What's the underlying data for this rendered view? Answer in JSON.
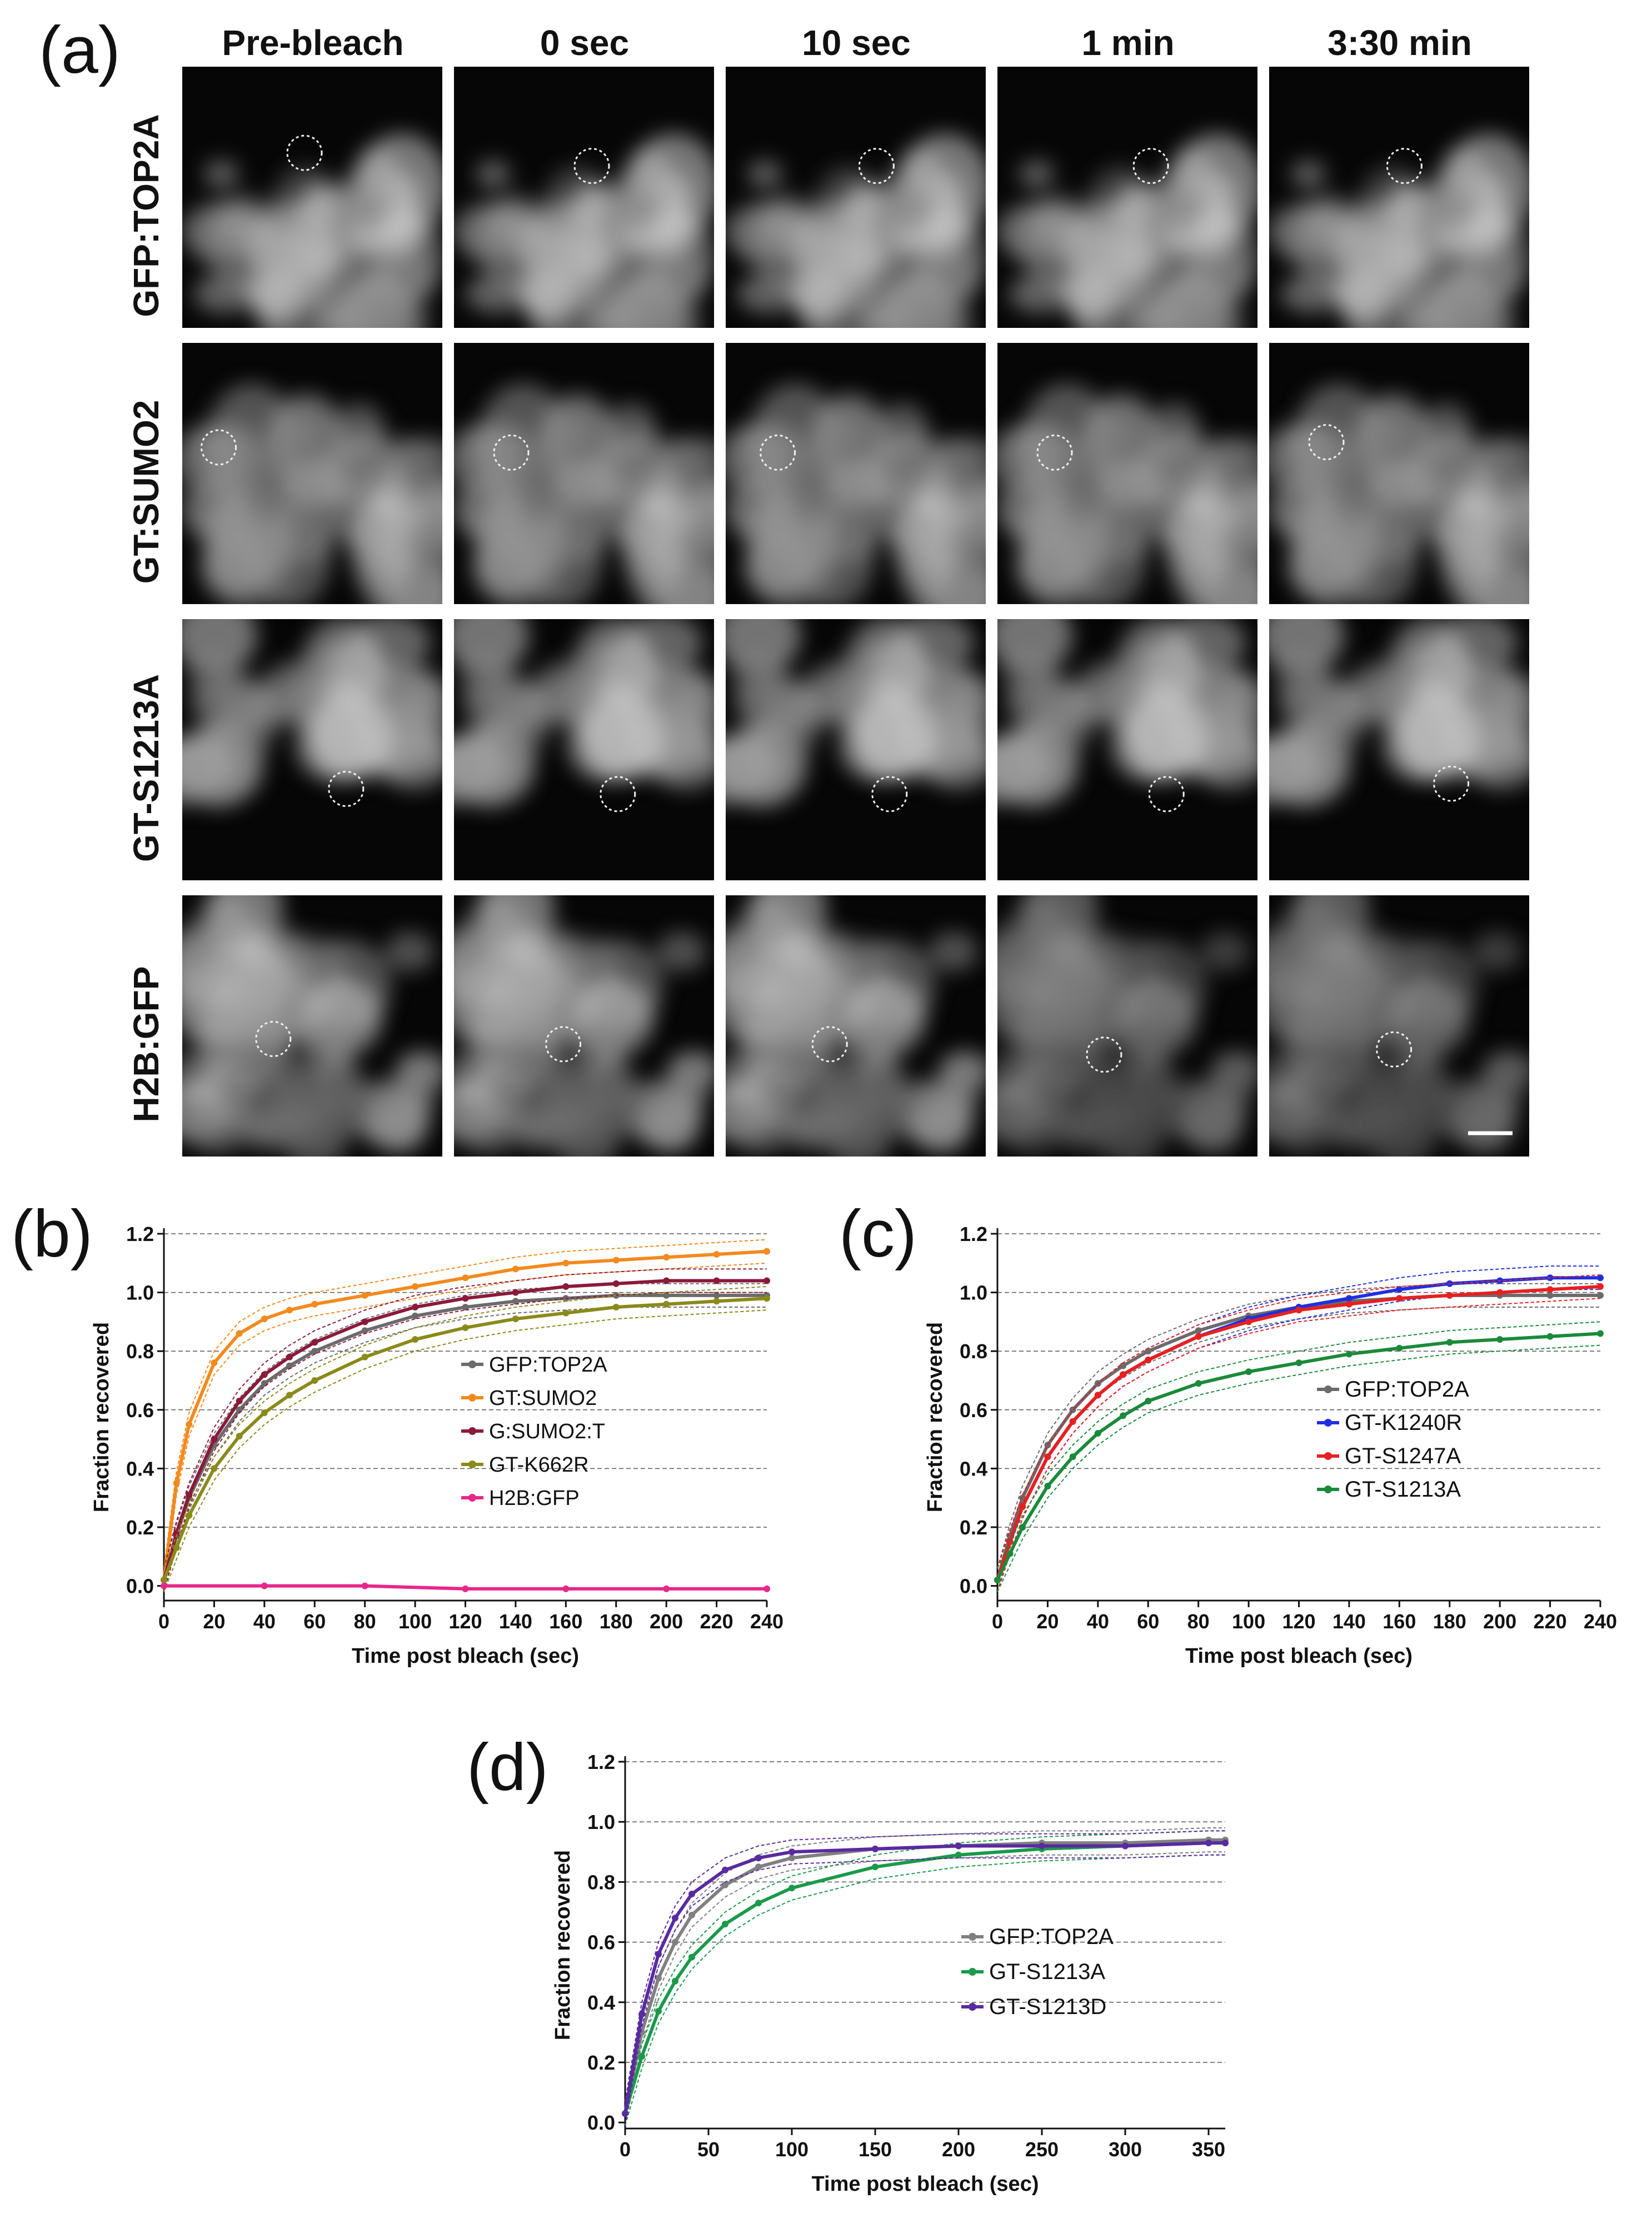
{
  "figure": {
    "panel_a": {
      "letter": "(a)",
      "columns": [
        "Pre-bleach",
        "0 sec",
        "10 sec",
        "1 min",
        "3:30 min"
      ],
      "rows": [
        "GFP:TOP2A",
        "GT:SUMO2",
        "GT-S1213A",
        "H2B:GFP"
      ]
    },
    "panel_b": {
      "letter": "(b)"
    },
    "panel_c": {
      "letter": "(c)"
    },
    "panel_d": {
      "letter": "(d)"
    }
  },
  "chart_data": [
    {
      "panel": "b",
      "type": "line",
      "title": "",
      "xlabel": "Time post bleach (sec)",
      "ylabel": "Fraction recovered",
      "xlim": [
        0,
        240
      ],
      "ylim": [
        -0.05,
        1.2
      ],
      "xticks": [
        0,
        20,
        40,
        60,
        80,
        100,
        120,
        140,
        160,
        180,
        200,
        220,
        240
      ],
      "yticks": [
        0.0,
        0.2,
        0.4,
        0.6,
        0.8,
        1.0,
        1.2
      ],
      "ytick_labels": [
        "0.0",
        "0.2",
        "0.4",
        "0.6",
        "0.8",
        "1.0",
        "1.2"
      ],
      "grid": "horizontal dashed",
      "legend_position": "right-middle",
      "series": [
        {
          "name": "GFP:TOP2A",
          "color": "#6b6b6b",
          "x": [
            0,
            5,
            10,
            20,
            30,
            40,
            50,
            60,
            80,
            100,
            120,
            140,
            160,
            180,
            200,
            220,
            240
          ],
          "y": [
            0.02,
            0.17,
            0.3,
            0.48,
            0.6,
            0.69,
            0.75,
            0.8,
            0.87,
            0.92,
            0.95,
            0.97,
            0.98,
            0.99,
            0.99,
            0.99,
            0.99
          ]
        },
        {
          "name": "GT:SUMO2",
          "color": "#f28a1e",
          "x": [
            0,
            5,
            10,
            20,
            30,
            40,
            50,
            60,
            80,
            100,
            120,
            140,
            160,
            180,
            200,
            220,
            240
          ],
          "y": [
            0.02,
            0.35,
            0.55,
            0.76,
            0.86,
            0.91,
            0.94,
            0.96,
            0.99,
            1.02,
            1.05,
            1.08,
            1.1,
            1.11,
            1.12,
            1.13,
            1.14
          ]
        },
        {
          "name": "G:SUMO2:T",
          "color": "#8b1a3a",
          "x": [
            0,
            5,
            10,
            20,
            30,
            40,
            50,
            60,
            80,
            100,
            120,
            140,
            160,
            180,
            200,
            220,
            240
          ],
          "y": [
            0.02,
            0.18,
            0.31,
            0.5,
            0.63,
            0.72,
            0.78,
            0.83,
            0.9,
            0.95,
            0.98,
            1.0,
            1.02,
            1.03,
            1.04,
            1.04,
            1.04
          ]
        },
        {
          "name": "GT-K662R",
          "color": "#8a8a1a",
          "x": [
            0,
            5,
            10,
            20,
            30,
            40,
            50,
            60,
            80,
            100,
            120,
            140,
            160,
            180,
            200,
            220,
            240
          ],
          "y": [
            0.02,
            0.13,
            0.24,
            0.4,
            0.51,
            0.59,
            0.65,
            0.7,
            0.78,
            0.84,
            0.88,
            0.91,
            0.93,
            0.95,
            0.96,
            0.97,
            0.98
          ]
        },
        {
          "name": "H2B:GFP",
          "color": "#e8278c",
          "x": [
            0,
            40,
            80,
            120,
            160,
            200,
            240
          ],
          "y": [
            0.0,
            0.0,
            0.0,
            -0.01,
            -0.01,
            -0.01,
            -0.01
          ]
        }
      ]
    },
    {
      "panel": "c",
      "type": "line",
      "title": "",
      "xlabel": "Time post bleach (sec)",
      "ylabel": "Fraction recovered",
      "xlim": [
        0,
        240
      ],
      "ylim": [
        -0.05,
        1.2
      ],
      "xticks": [
        0,
        20,
        40,
        60,
        80,
        100,
        120,
        140,
        160,
        180,
        200,
        220,
        240
      ],
      "yticks": [
        0.0,
        0.2,
        0.4,
        0.6,
        0.8,
        1.0,
        1.2
      ],
      "ytick_labels": [
        "0.0",
        "0.2",
        "0.4",
        "0.6",
        "0.8",
        "1.0",
        "1.2"
      ],
      "grid": "horizontal dashed",
      "legend_position": "right-middle",
      "series": [
        {
          "name": "GFP:TOP2A",
          "color": "#6b6b6b",
          "x": [
            0,
            5,
            10,
            20,
            30,
            40,
            50,
            60,
            80,
            100,
            120,
            140,
            160,
            180,
            200,
            220,
            240
          ],
          "y": [
            0.02,
            0.17,
            0.3,
            0.48,
            0.6,
            0.69,
            0.75,
            0.8,
            0.87,
            0.92,
            0.95,
            0.97,
            0.98,
            0.99,
            0.99,
            0.99,
            0.99
          ]
        },
        {
          "name": "GT-K1240R",
          "color": "#1f2fe0",
          "x": [
            0,
            5,
            10,
            20,
            30,
            40,
            50,
            60,
            80,
            100,
            120,
            140,
            160,
            180,
            200,
            220,
            240
          ],
          "y": [
            0.02,
            0.15,
            0.27,
            0.44,
            0.56,
            0.65,
            0.72,
            0.77,
            0.85,
            0.91,
            0.95,
            0.98,
            1.01,
            1.03,
            1.04,
            1.05,
            1.05
          ]
        },
        {
          "name": "GT-S1247A",
          "color": "#e82020",
          "x": [
            0,
            5,
            10,
            20,
            30,
            40,
            50,
            60,
            80,
            100,
            120,
            140,
            160,
            180,
            200,
            220,
            240
          ],
          "y": [
            0.02,
            0.15,
            0.27,
            0.44,
            0.56,
            0.65,
            0.72,
            0.77,
            0.85,
            0.9,
            0.94,
            0.96,
            0.98,
            0.99,
            1.0,
            1.01,
            1.02
          ]
        },
        {
          "name": "GT-S1213A",
          "color": "#1a8a3a",
          "x": [
            0,
            5,
            10,
            20,
            30,
            40,
            50,
            60,
            80,
            100,
            120,
            140,
            160,
            180,
            200,
            220,
            240
          ],
          "y": [
            0.02,
            0.11,
            0.2,
            0.34,
            0.44,
            0.52,
            0.58,
            0.63,
            0.69,
            0.73,
            0.76,
            0.79,
            0.81,
            0.83,
            0.84,
            0.85,
            0.86
          ]
        }
      ]
    },
    {
      "panel": "d",
      "type": "line",
      "title": "",
      "xlabel": "Time post bleach (sec)",
      "ylabel": "Fraction recovered",
      "xlim": [
        0,
        360
      ],
      "ylim": [
        -0.02,
        1.2
      ],
      "xticks": [
        0,
        50,
        100,
        150,
        200,
        250,
        300,
        350
      ],
      "yticks": [
        0.0,
        0.2,
        0.4,
        0.6,
        0.8,
        1.0,
        1.2
      ],
      "ytick_labels": [
        "0.0",
        "0.2",
        "0.4",
        "0.6",
        "0.8",
        "1.0",
        "1.2"
      ],
      "grid": "horizontal dashed",
      "legend_position": "right-middle",
      "series": [
        {
          "name": "GFP:TOP2A",
          "color": "#808080",
          "x": [
            0,
            10,
            20,
            30,
            40,
            60,
            80,
            100,
            150,
            200,
            250,
            300,
            350,
            360
          ],
          "y": [
            0.03,
            0.3,
            0.48,
            0.6,
            0.69,
            0.79,
            0.85,
            0.88,
            0.91,
            0.92,
            0.93,
            0.93,
            0.94,
            0.94
          ]
        },
        {
          "name": "GT-S1213A",
          "color": "#1a9a4a",
          "x": [
            0,
            10,
            20,
            30,
            40,
            60,
            80,
            100,
            150,
            200,
            250,
            300,
            350,
            360
          ],
          "y": [
            0.03,
            0.22,
            0.37,
            0.47,
            0.55,
            0.66,
            0.73,
            0.78,
            0.85,
            0.89,
            0.91,
            0.92,
            0.93,
            0.93
          ]
        },
        {
          "name": "GT-S1213D",
          "color": "#5a2aa0",
          "x": [
            0,
            10,
            20,
            30,
            40,
            60,
            80,
            100,
            150,
            200,
            250,
            300,
            350,
            360
          ],
          "y": [
            0.03,
            0.36,
            0.56,
            0.68,
            0.76,
            0.84,
            0.88,
            0.9,
            0.91,
            0.92,
            0.92,
            0.92,
            0.93,
            0.93
          ]
        }
      ]
    }
  ]
}
